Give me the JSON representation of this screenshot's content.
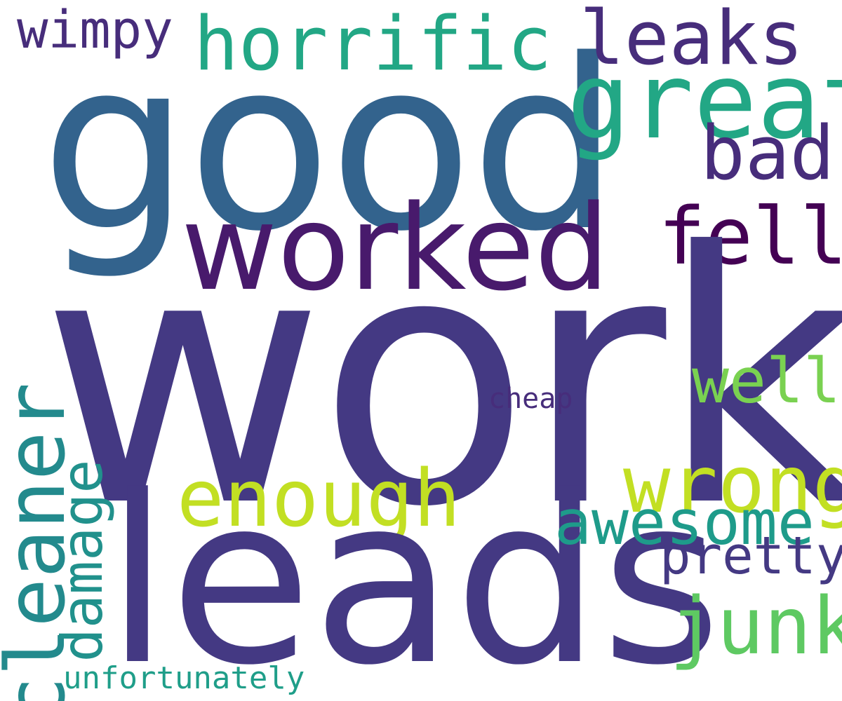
{
  "words": {
    "work": {
      "text": "work",
      "color": "#443983"
    },
    "leads": {
      "text": "leads",
      "color": "#443983"
    },
    "good": {
      "text": "good",
      "color": "#33638d"
    },
    "worked": {
      "text": "worked",
      "color": "#481a6c"
    },
    "horrific": {
      "text": "horrific",
      "color": "#22a785"
    },
    "leaks": {
      "text": "leaks",
      "color": "#472d7b"
    },
    "wimpy": {
      "text": "wimpy",
      "color": "#472d7b"
    },
    "great": {
      "text": "great",
      "color": "#22a785"
    },
    "bad": {
      "text": "bad",
      "color": "#472d7b"
    },
    "fell": {
      "text": "fell",
      "color": "#440154"
    },
    "well": {
      "text": "well",
      "color": "#7ad151"
    },
    "cheap": {
      "text": "cheap",
      "color": "#472d7b"
    },
    "wrong": {
      "text": "wrong",
      "color": "#c2df23"
    },
    "enough": {
      "text": "enough",
      "color": "#c2df23"
    },
    "awesome": {
      "text": "awesome",
      "color": "#1e9b8a"
    },
    "pretty": {
      "text": "pretty",
      "color": "#443983"
    },
    "junk": {
      "text": "junk",
      "color": "#5ec962"
    },
    "cleaner": {
      "text": "cleaner",
      "color": "#238a8d"
    },
    "damage": {
      "text": "damage",
      "color": "#21918c"
    },
    "unfortunately": {
      "text": "unfortunately",
      "color": "#1f9e89"
    }
  }
}
